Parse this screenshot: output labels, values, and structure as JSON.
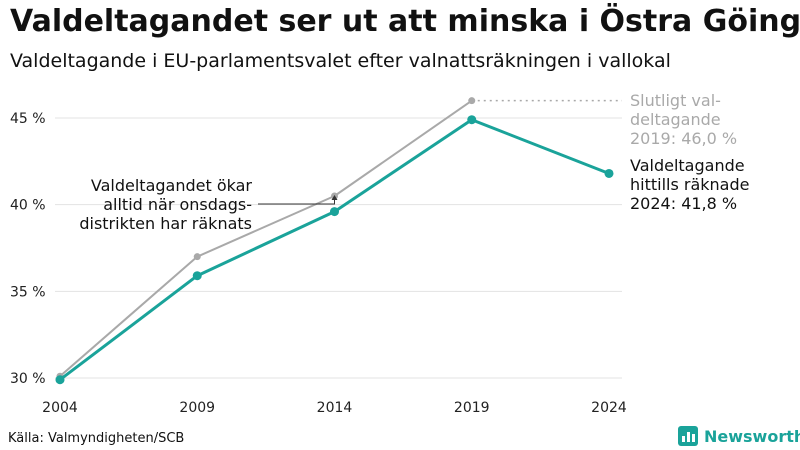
{
  "title": "Valdeltagandet ser ut att minska i Östra Göinge",
  "subtitle": "Valdeltagande i EU-parlamentsvalet efter valnattsräkningen i vallokal",
  "source": "Källa: Valmyndigheten/SCB",
  "brand": "Newsworthy",
  "colors": {
    "current": "#1aa39a",
    "final": "#a9a9a9",
    "grid": "#e3e3e3"
  },
  "chart_data": {
    "type": "line",
    "x": [
      2004,
      2009,
      2014,
      2019,
      2024
    ],
    "x_tick_labels": [
      "2004",
      "2009",
      "2014",
      "2019",
      "2024"
    ],
    "ylim": [
      30,
      47
    ],
    "yticks": [
      30,
      35,
      40,
      45
    ],
    "y_tick_labels": [
      "30 %",
      "35 %",
      "40 %",
      "45 %"
    ],
    "grid": true,
    "series": [
      {
        "key": "final",
        "values": [
          30.1,
          37.0,
          40.5,
          46.0,
          null
        ]
      },
      {
        "key": "current",
        "values": [
          29.9,
          35.9,
          39.6,
          44.9,
          41.8
        ]
      }
    ],
    "annotations": {
      "final_label": [
        "Slutligt val-",
        "deltagande",
        "2019: 46,0 %"
      ],
      "current_label": [
        "Valdeltagande",
        "hittills räknade",
        "2024: 41,8 %"
      ],
      "note": [
        "Valdeltagandet ökar",
        "alltid när onsdags-",
        "distrikten har räknats"
      ]
    }
  }
}
